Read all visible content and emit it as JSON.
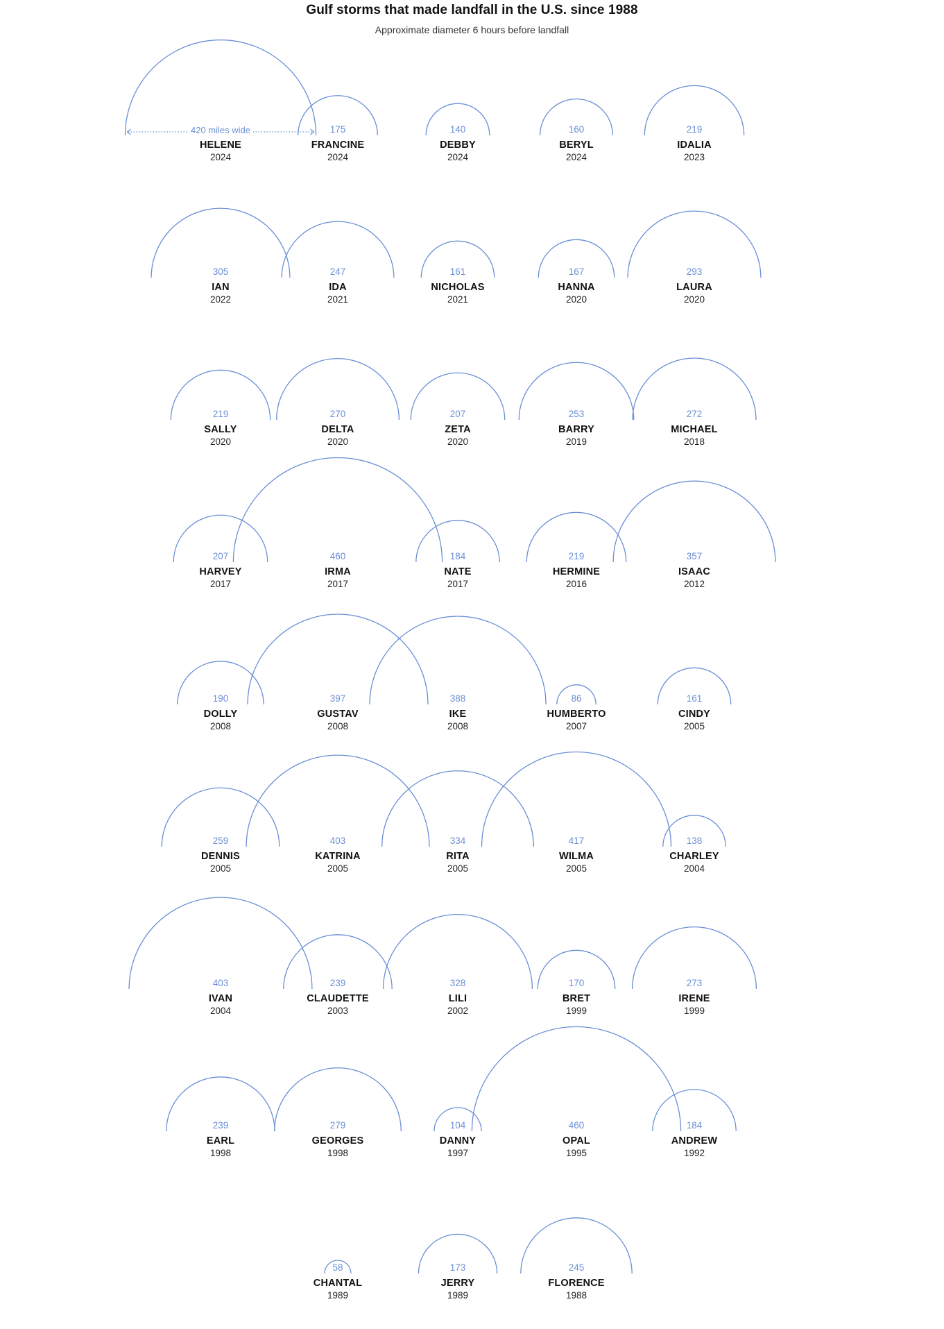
{
  "chart_data": {
    "type": "arc",
    "title": "Gulf storms that made landfall in the U.S. since 1988",
    "subtitle": "Approximate diameter 6 hours before landfall",
    "unit": "miles",
    "annotation": {
      "label": "420 miles wide",
      "storm": "HELENE"
    },
    "arc_color": "#6a8fd6",
    "storms": [
      {
        "name": "HELENE",
        "year": "2024",
        "diameter": 420
      },
      {
        "name": "FRANCINE",
        "year": "2024",
        "diameter": 175
      },
      {
        "name": "DEBBY",
        "year": "2024",
        "diameter": 140
      },
      {
        "name": "BERYL",
        "year": "2024",
        "diameter": 160
      },
      {
        "name": "IDALIA",
        "year": "2023",
        "diameter": 219
      },
      {
        "name": "IAN",
        "year": "2022",
        "diameter": 305
      },
      {
        "name": "IDA",
        "year": "2021",
        "diameter": 247
      },
      {
        "name": "NICHOLAS",
        "year": "2021",
        "diameter": 161
      },
      {
        "name": "HANNA",
        "year": "2020",
        "diameter": 167
      },
      {
        "name": "LAURA",
        "year": "2020",
        "diameter": 293
      },
      {
        "name": "SALLY",
        "year": "2020",
        "diameter": 219
      },
      {
        "name": "DELTA",
        "year": "2020",
        "diameter": 270
      },
      {
        "name": "ZETA",
        "year": "2020",
        "diameter": 207
      },
      {
        "name": "BARRY",
        "year": "2019",
        "diameter": 253
      },
      {
        "name": "MICHAEL",
        "year": "2018",
        "diameter": 272
      },
      {
        "name": "HARVEY",
        "year": "2017",
        "diameter": 207
      },
      {
        "name": "IRMA",
        "year": "2017",
        "diameter": 460
      },
      {
        "name": "NATE",
        "year": "2017",
        "diameter": 184
      },
      {
        "name": "HERMINE",
        "year": "2016",
        "diameter": 219
      },
      {
        "name": "ISAAC",
        "year": "2012",
        "diameter": 357
      },
      {
        "name": "DOLLY",
        "year": "2008",
        "diameter": 190
      },
      {
        "name": "GUSTAV",
        "year": "2008",
        "diameter": 397
      },
      {
        "name": "IKE",
        "year": "2008",
        "diameter": 388
      },
      {
        "name": "HUMBERTO",
        "year": "2007",
        "diameter": 86
      },
      {
        "name": "CINDY",
        "year": "2005",
        "diameter": 161
      },
      {
        "name": "DENNIS",
        "year": "2005",
        "diameter": 259
      },
      {
        "name": "KATRINA",
        "year": "2005",
        "diameter": 403
      },
      {
        "name": "RITA",
        "year": "2005",
        "diameter": 334
      },
      {
        "name": "WILMA",
        "year": "2005",
        "diameter": 417
      },
      {
        "name": "CHARLEY",
        "year": "2004",
        "diameter": 138
      },
      {
        "name": "IVAN",
        "year": "2004",
        "diameter": 403
      },
      {
        "name": "CLAUDETTE",
        "year": "2003",
        "diameter": 239
      },
      {
        "name": "LILI",
        "year": "2002",
        "diameter": 328
      },
      {
        "name": "BRET",
        "year": "1999",
        "diameter": 170
      },
      {
        "name": "IRENE",
        "year": "1999",
        "diameter": 273
      },
      {
        "name": "EARL",
        "year": "1998",
        "diameter": 239
      },
      {
        "name": "GEORGES",
        "year": "1998",
        "diameter": 279
      },
      {
        "name": "DANNY",
        "year": "1997",
        "diameter": 104
      },
      {
        "name": "OPAL",
        "year": "1995",
        "diameter": 460
      },
      {
        "name": "ANDREW",
        "year": "1992",
        "diameter": 184
      },
      {
        "name": "CHANTAL",
        "year": "1989",
        "diameter": 58
      },
      {
        "name": "JERRY",
        "year": "1989",
        "diameter": 173
      },
      {
        "name": "FLORENCE",
        "year": "1988",
        "diameter": 245
      }
    ]
  }
}
